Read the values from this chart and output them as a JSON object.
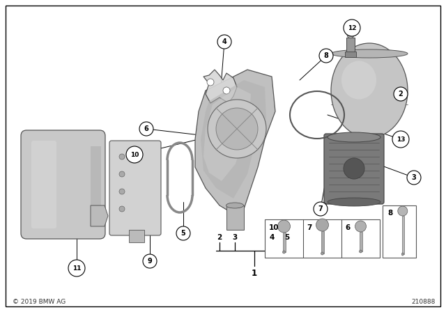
{
  "bg_color": "#ffffff",
  "border_color": "#000000",
  "fig_width": 6.4,
  "fig_height": 4.48,
  "copyright": "© 2019 BMW AG",
  "part_number": "210888",
  "line_color": "#000000"
}
